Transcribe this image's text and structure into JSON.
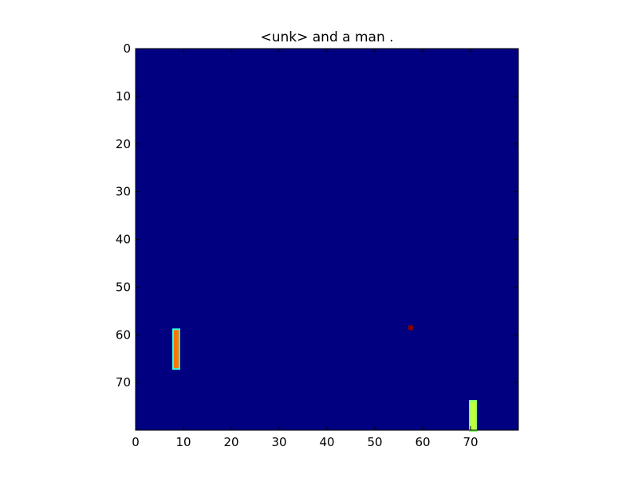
{
  "chart_data": {
    "type": "heatmap",
    "title": "<unk> and a man .",
    "xlabel": "",
    "ylabel": "",
    "xlim": [
      0,
      80
    ],
    "ylim": [
      80,
      0
    ],
    "x_ticks": [
      0,
      10,
      20,
      30,
      40,
      50,
      60,
      70
    ],
    "y_ticks": [
      0,
      10,
      20,
      30,
      40,
      50,
      60,
      70
    ],
    "grid": false,
    "colormap": "jet",
    "background_value": 0.0,
    "regions": [
      {
        "name": "orange-bar",
        "x": [
          8,
          9
        ],
        "y": [
          59,
          67
        ],
        "value": 0.82,
        "color": "#ff7700",
        "edge_color": "#33ffe0"
      },
      {
        "name": "dark-red-spot",
        "x": [
          57,
          58
        ],
        "y": [
          58,
          59
        ],
        "value": 1.0,
        "color": "#800000"
      },
      {
        "name": "yellow-green-bar",
        "x": [
          70,
          71
        ],
        "y": [
          74,
          80
        ],
        "value": 0.6,
        "color": "#c3ff3b",
        "edge_color": "#8bff6e"
      }
    ],
    "colors": {
      "background": "#000080",
      "frame": "#000000"
    }
  }
}
